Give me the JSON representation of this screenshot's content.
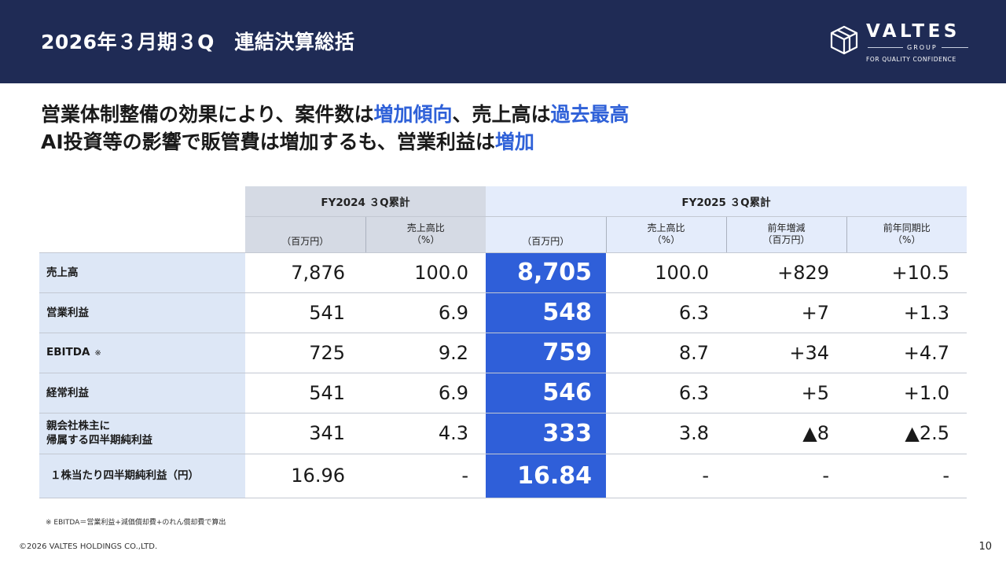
{
  "header": {
    "title": "2026年３月期３Q　連結決算総括",
    "logo": {
      "name": "VALTES",
      "group": "GROUP",
      "tagline": "FOR QUALITY CONFIDENCE"
    }
  },
  "headline": {
    "line1": {
      "p1": "営業体制整備の効果により、案件数は",
      "h1": "増加傾向",
      "p2": "、売上高は",
      "h2": "過去最高"
    },
    "line2": {
      "p1": "AI投資等の影響で販管費は増加するも、営業利益は",
      "h1": "増加"
    }
  },
  "table": {
    "group_fy2024": "FY2024 ３Q累計",
    "group_fy2025": "FY2025 ３Q累計",
    "sub_fy2024": {
      "amount": "（百万円）",
      "ratio": "売上高比\n（%）"
    },
    "sub_fy2025": {
      "amount": "（百万円）",
      "ratio": "売上高比\n（%）",
      "change": "前年増減\n（百万円）",
      "yoy": "前年同期比\n（%）"
    },
    "rows": [
      {
        "label": "売上高",
        "fy24": "7,876",
        "fy24_ratio": "100.0",
        "fy25": "8,705",
        "fy25_ratio": "100.0",
        "change": "+829",
        "yoy": "+10.5"
      },
      {
        "label": "営業利益",
        "fy24": "541",
        "fy24_ratio": "6.9",
        "fy25": "548",
        "fy25_ratio": "6.3",
        "change": "+7",
        "yoy": "+1.3"
      },
      {
        "label": "EBITDA",
        "mark": "※",
        "fy24": "725",
        "fy24_ratio": "9.2",
        "fy25": "759",
        "fy25_ratio": "8.7",
        "change": "+34",
        "yoy": "+4.7"
      },
      {
        "label": "経常利益",
        "fy24": "541",
        "fy24_ratio": "6.9",
        "fy25": "546",
        "fy25_ratio": "6.3",
        "change": "+5",
        "yoy": "+1.0"
      },
      {
        "label": "親会社株主に\n帰属する四半期純利益",
        "fy24": "341",
        "fy24_ratio": "4.3",
        "fy25": "333",
        "fy25_ratio": "3.8",
        "change": "▲8",
        "yoy": "▲2.5"
      },
      {
        "label": "１株当たり四半期純利益（円）",
        "fy24": "16.96",
        "fy24_ratio": "-",
        "fy25": "16.84",
        "fy25_ratio": "-",
        "change": "-",
        "yoy": "-"
      }
    ]
  },
  "footnote": "※ EBITDA＝営業利益+減価償却費+のれん償却費で算出",
  "copyright": "©2026 VALTES HOLDINGS CO.,LTD.",
  "page_number": "10",
  "colors": {
    "header_bg": "#1f2b55",
    "accent": "#2f61d8",
    "highlight_col": "#2f5fd9",
    "label_bg": "#dde7f6"
  },
  "icons": {
    "logo_mark": "valtes-cube-logo-icon"
  }
}
